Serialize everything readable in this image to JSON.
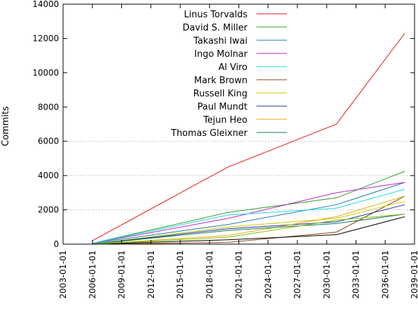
{
  "chart_data": {
    "type": "line",
    "title": "",
    "xlabel": "",
    "ylabel": "Commits",
    "xlim": [
      2003,
      2039
    ],
    "ylim": [
      0,
      14000
    ],
    "x_ticks": [
      "2003-01-01",
      "2006-01-01",
      "2009-01-01",
      "2012-01-01",
      "2015-01-01",
      "2018-01-01",
      "2021-01-01",
      "2024-01-01",
      "2027-01-01",
      "2030-01-01",
      "2033-01-01",
      "2036-01-01",
      "2039-01-01"
    ],
    "x_tick_values": [
      2003,
      2006,
      2009,
      2012,
      2015,
      2018,
      2021,
      2024,
      2027,
      2030,
      2033,
      2036,
      2039
    ],
    "y_ticks": [
      "0",
      "2000",
      "4000",
      "6000",
      "8000",
      "10000",
      "12000",
      "14000"
    ],
    "y_tick_values": [
      0,
      2000,
      4000,
      6000,
      8000,
      10000,
      12000,
      14000
    ],
    "legend_position": "top-center",
    "series": [
      {
        "name": "Linus Torvalds",
        "color": "#e41a1c",
        "x": [
          2006.0,
          2019.9,
          2031.0,
          2038.0
        ],
        "y": [
          200,
          4500,
          7000,
          12300
        ],
        "legend": true
      },
      {
        "name": "David S. Miller",
        "color": "#2ca02c",
        "x": [
          2006.0,
          2019.9,
          2031.0,
          2038.0
        ],
        "y": [
          50,
          1850,
          2700,
          4250
        ],
        "legend": true
      },
      {
        "name": "Takashi Iwai",
        "color": "#1f78b4",
        "x": [
          2006.0,
          2019.9,
          2031.0,
          2038.0
        ],
        "y": [
          50,
          1150,
          2300,
          3600
        ],
        "legend": true
      },
      {
        "name": "Ingo Molnar",
        "color": "#c020c0",
        "x": [
          2006.0,
          2019.9,
          2031.0,
          2038.0
        ],
        "y": [
          50,
          1500,
          3000,
          3600
        ],
        "legend": true
      },
      {
        "name": "Al Viro",
        "color": "#20d8e0",
        "x": [
          2006.0,
          2019.9,
          2031.0,
          2038.0
        ],
        "y": [
          50,
          1700,
          2100,
          3200
        ],
        "legend": true
      },
      {
        "name": "Mark Brown",
        "color": "#8b4513",
        "x": [
          2006.0,
          2019.9,
          2031.0,
          2038.0
        ],
        "y": [
          0,
          100,
          700,
          2800
        ],
        "legend": true
      },
      {
        "name": "Russell King",
        "color": "#c8c800",
        "x": [
          2006.0,
          2019.9,
          2031.0,
          2038.0
        ],
        "y": [
          0,
          1000,
          1500,
          2500
        ],
        "legend": true
      },
      {
        "name": "Paul Mundt",
        "color": "#2030a0",
        "x": [
          2006.0,
          2019.9,
          2031.0,
          2038.0
        ],
        "y": [
          0,
          900,
          1300,
          2300
        ],
        "legend": true
      },
      {
        "name": "Tejun Heo",
        "color": "#e8a800",
        "x": [
          2006.0,
          2019.9,
          2031.0,
          2038.0
        ],
        "y": [
          0,
          500,
          1600,
          2800
        ],
        "legend": true
      },
      {
        "name": "Thomas Gleixner",
        "color": "#0a7a5a",
        "x": [
          2006.0,
          2019.9,
          2031.0,
          2038.0
        ],
        "y": [
          0,
          800,
          1200,
          1750
        ],
        "legend": true
      },
      {
        "name": "",
        "color": "#000000",
        "x": [
          2006.0,
          2019.9,
          2031.0,
          2038.0
        ],
        "y": [
          0,
          250,
          550,
          1600
        ],
        "legend": false
      },
      {
        "name": "",
        "color": "#7fbf00",
        "x": [
          2006.0,
          2019.9,
          2031.0,
          2038.0
        ],
        "y": [
          0,
          400,
          1400,
          1750
        ],
        "legend": false
      }
    ]
  }
}
